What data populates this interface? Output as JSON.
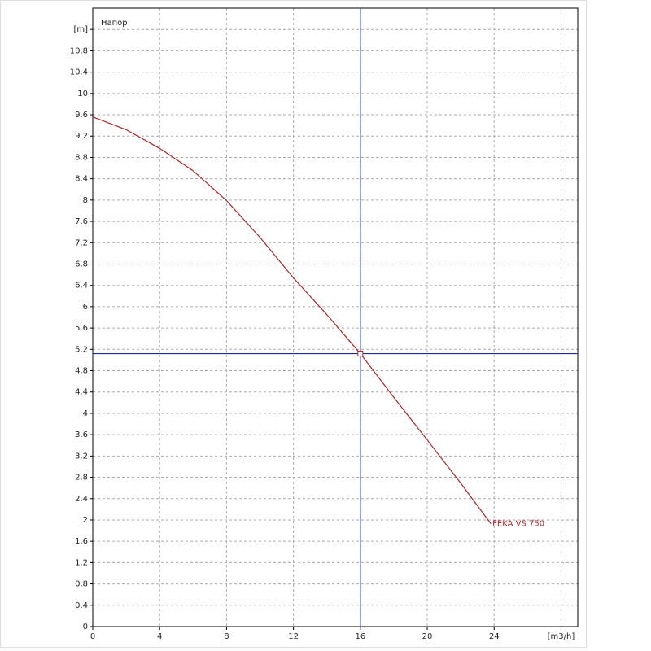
{
  "chart_data": {
    "type": "line",
    "title": "Напор",
    "series": [
      {
        "name": "FEKA VS 750",
        "color": "#b22222",
        "x": [
          0,
          2,
          4,
          6,
          8,
          10,
          12,
          14,
          16,
          18,
          20,
          22,
          23.8
        ],
        "values": [
          9.56,
          9.32,
          8.97,
          8.55,
          7.99,
          7.3,
          6.54,
          5.85,
          5.12,
          4.3,
          3.5,
          2.69,
          1.93
        ]
      }
    ],
    "cursor": {
      "x": 16,
      "y": 5.12,
      "color": "#1a2a9a"
    },
    "xlim": [
      0,
      29
    ],
    "ylim": [
      0,
      11.6
    ],
    "xticks": [
      0,
      4,
      8,
      12,
      16,
      20,
      24,
      {
        "value": 28,
        "label": "[m3/h]"
      }
    ],
    "yticks": [
      0,
      0.4,
      0.8,
      1.2,
      1.6,
      2,
      2.4,
      2.8,
      3.2,
      3.6,
      4,
      4.4,
      4.8,
      5.2,
      5.6,
      6,
      6.4,
      6.8,
      7.2,
      7.6,
      8,
      8.4,
      8.8,
      9.2,
      9.6,
      10,
      10.4,
      10.8,
      {
        "value": 11.2,
        "label": "[m]"
      }
    ],
    "grid": true
  }
}
